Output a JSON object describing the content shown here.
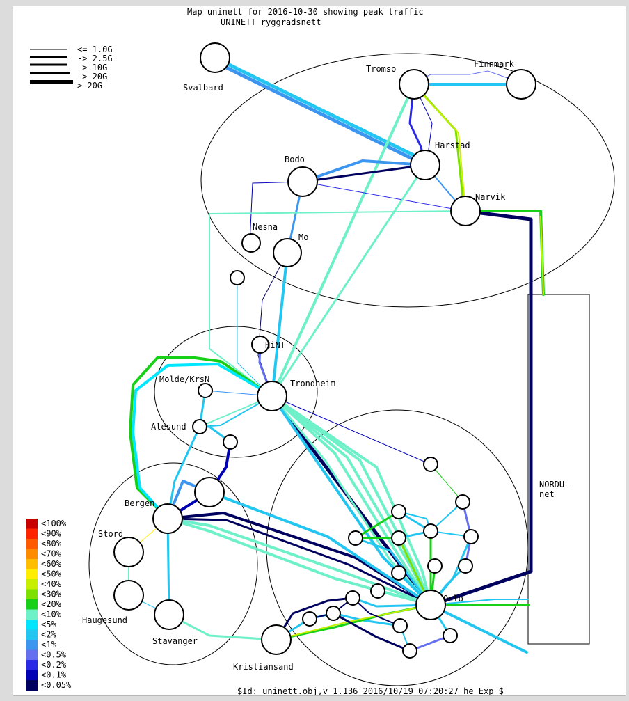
{
  "title": "Map uninett for 2016-10-30 showing peak traffic",
  "subtitle": "UNINETT ryggradsnett",
  "footer": "$Id: uninett.obj,v 1.136 2016/10/19 07:20:27 he Exp $",
  "capacity_legend": [
    "<= 1.0G",
    "-> 2.5G",
    "-> 10G",
    "-> 20G",
    "> 20G"
  ],
  "load_legend": [
    {
      "label": "<100%",
      "color": "#c80000"
    },
    {
      "label": "<90%",
      "color": "#ff2400"
    },
    {
      "label": "<80%",
      "color": "#ff5a00"
    },
    {
      "label": "<70%",
      "color": "#ff8c00"
    },
    {
      "label": "<60%",
      "color": "#ffbe00"
    },
    {
      "label": "<50%",
      "color": "#ffee00"
    },
    {
      "label": "<40%",
      "color": "#c8ee00"
    },
    {
      "label": "<30%",
      "color": "#7ee000"
    },
    {
      "label": "<20%",
      "color": "#18d018"
    },
    {
      "label": "<10%",
      "color": "#6ef0c8"
    },
    {
      "label": "<5%",
      "color": "#00e6ff"
    },
    {
      "label": "<2%",
      "color": "#22c6f0"
    },
    {
      "label": "<1%",
      "color": "#3c96f0"
    },
    {
      "label": "<0.5%",
      "color": "#6470f0"
    },
    {
      "label": "<0.2%",
      "color": "#2a2ae6"
    },
    {
      "label": "<0.1%",
      "color": "#0000b4"
    },
    {
      "label": "<0.05%",
      "color": "#00005e"
    }
  ],
  "nodes": {
    "svalbard": "Svalbard",
    "tromso": "Tromso",
    "finnmark": "Finnmark",
    "harstad": "Harstad",
    "bodo": "Bodo",
    "narvik": "Narvik",
    "nesna": "Nesna",
    "mo": "Mo",
    "hint": "HiNT",
    "trondheim": "Trondheim",
    "molde": "Molde/KrsN",
    "alesund": "Alesund",
    "bergen": "Bergen",
    "stord": "Stord",
    "haugesund": "Haugesund",
    "stavanger": "Stavanger",
    "kristiansand": "Kristiansand",
    "oslo": "Oslo",
    "nordunet": "NORDU-\nnet"
  }
}
